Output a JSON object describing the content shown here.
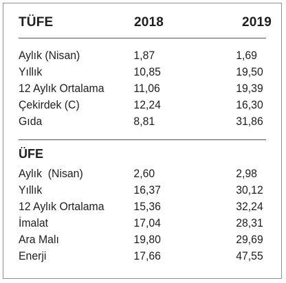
{
  "table": {
    "header": {
      "title": "TÜFE",
      "col1": "2018",
      "col2": "2019"
    },
    "tufe_rows": [
      {
        "label": "Aylık (Nisan)",
        "v2018": "1,87",
        "v2019": "1,69"
      },
      {
        "label": "Yıllık",
        "v2018": "10,85",
        "v2019": "19,50"
      },
      {
        "label": "12 Aylık Ortalama",
        "v2018": "11,06",
        "v2019": "19,39"
      },
      {
        "label": "Çekirdek (C)",
        "v2018": "12,24",
        "v2019": "16,30"
      },
      {
        "label": "Gıda",
        "v2018": "8,81",
        "v2019": "31,86"
      }
    ],
    "ufe_title": "ÜFE",
    "ufe_rows": [
      {
        "label": "Aylık  (Nisan)",
        "v2018": "2,60",
        "v2019": "2,98"
      },
      {
        "label": "Yıllık",
        "v2018": "16,37",
        "v2019": "30,12"
      },
      {
        "label": "12 Aylık Ortalama",
        "v2018": "15,36",
        "v2019": "32,24"
      },
      {
        "label": "İmalat",
        "v2018": "17,04",
        "v2019": "28,31"
      },
      {
        "label": "Ara Malı",
        "v2018": "19,80",
        "v2019": "29,69"
      },
      {
        "label": "Enerji",
        "v2018": "17,66",
        "v2019": "47,55"
      }
    ]
  }
}
